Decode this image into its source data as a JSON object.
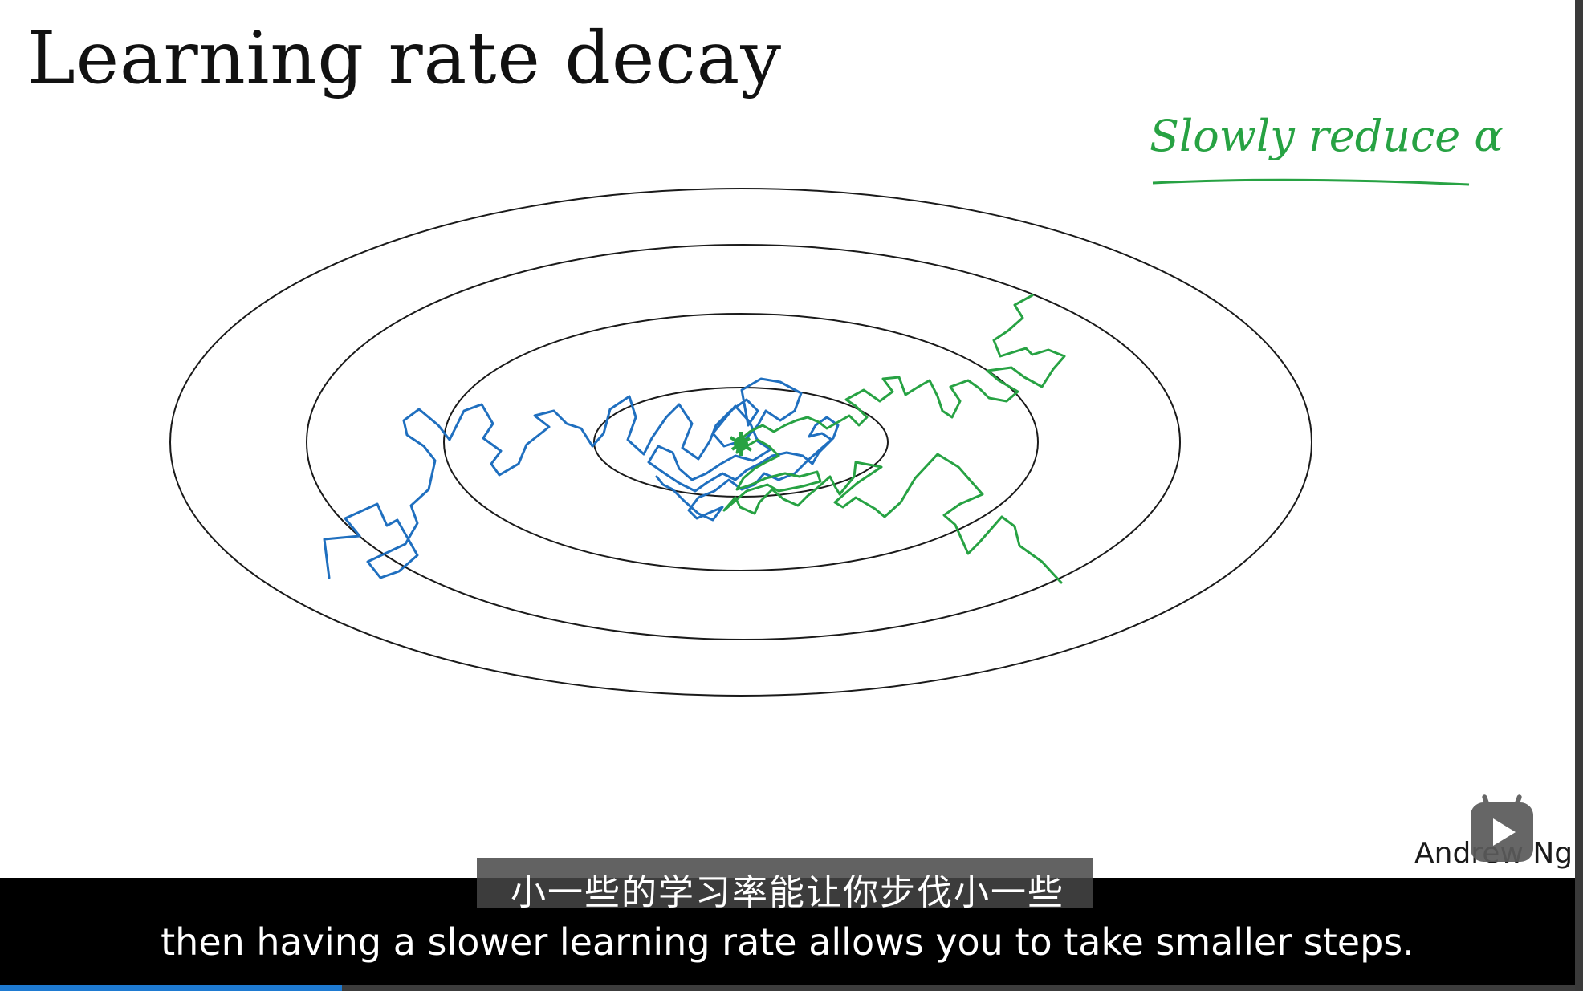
{
  "slide": {
    "title": "Learning rate decay",
    "annotation": "Slowly reduce α",
    "author": "Andrew Ng"
  },
  "subtitles": {
    "chinese": "小一些的学习率能让你步伐小一些",
    "english": "then having a slower learning rate allows you to take smaller steps."
  },
  "player": {
    "progress": 0.217
  },
  "colors": {
    "contour": "#1a1a1a",
    "path_constant_lr": "#1f6fbf",
    "path_decaying_lr": "#27a243",
    "annotation": "#27a243",
    "progress": "#1e7ad1"
  },
  "icons": {
    "play_badge": "play-icon"
  }
}
